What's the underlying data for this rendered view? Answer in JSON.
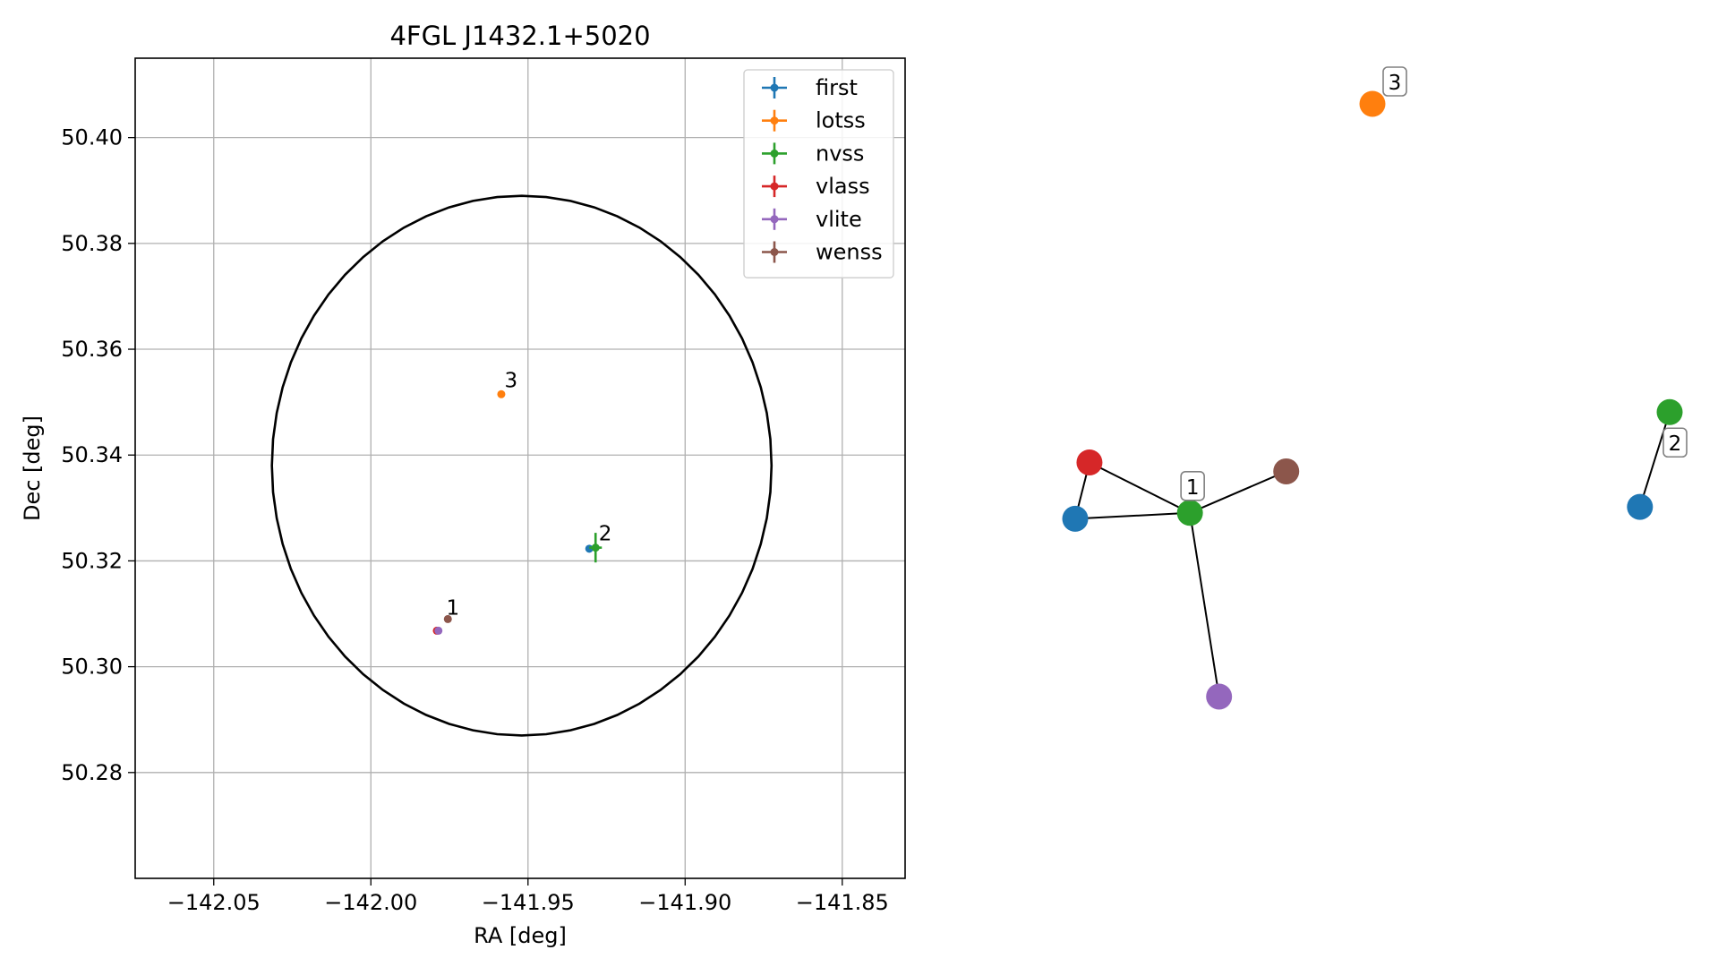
{
  "chart_data": [
    {
      "type": "scatter",
      "title": "4FGL J1432.1+5020",
      "xlabel": "RA [deg]",
      "ylabel": "Dec [deg]",
      "xlim": [
        -142.075,
        -141.83
      ],
      "ylim": [
        50.26,
        50.415
      ],
      "xticks": [
        -142.05,
        -142.0,
        -141.95,
        -141.9,
        -141.85
      ],
      "xtick_labels": [
        "−142.05",
        "−142.00",
        "−141.95",
        "−141.90",
        "−141.85"
      ],
      "yticks": [
        50.28,
        50.3,
        50.32,
        50.34,
        50.36,
        50.38,
        50.4
      ],
      "ytick_labels": [
        "50.28",
        "50.30",
        "50.32",
        "50.34",
        "50.36",
        "50.38",
        "50.40"
      ],
      "grid": true,
      "legend_position": "top-right",
      "circle": {
        "center_ra": -141.952,
        "center_dec": 50.338,
        "radius_ra": 0.0795,
        "radius_dec": 0.051
      },
      "series": [
        {
          "name": "first",
          "color": "#1f77b4",
          "points": [
            {
              "x": -141.9305,
              "y": 50.3223,
              "xerr": 0,
              "yerr": 0
            }
          ]
        },
        {
          "name": "lotss",
          "color": "#ff7f0e",
          "points": [
            {
              "x": -141.9585,
              "y": 50.3515,
              "xerr": 0,
              "yerr": 0
            }
          ]
        },
        {
          "name": "nvss",
          "color": "#2ca02c",
          "points": [
            {
              "x": -141.9285,
              "y": 50.3225,
              "xerr": 0.002,
              "yerr": 0.0028
            }
          ]
        },
        {
          "name": "vlass",
          "color": "#d62728",
          "points": [
            {
              "x": -141.979,
              "y": 50.3068,
              "xerr": 0,
              "yerr": 0
            }
          ]
        },
        {
          "name": "vlite",
          "color": "#9467bd",
          "points": [
            {
              "x": -141.9785,
              "y": 50.3068,
              "xerr": 0,
              "yerr": 0
            }
          ]
        },
        {
          "name": "wenss",
          "color": "#8c564b",
          "points": [
            {
              "x": -141.9755,
              "y": 50.309,
              "xerr": 0,
              "yerr": 0
            }
          ]
        }
      ],
      "annotations": [
        {
          "text": "1",
          "x": -141.976,
          "y": 50.3095
        },
        {
          "text": "2",
          "x": -141.9275,
          "y": 50.3235
        },
        {
          "text": "3",
          "x": -141.9575,
          "y": 50.3525
        }
      ]
    },
    {
      "type": "network",
      "nodes": [
        {
          "id": "a",
          "color": "#1f77b4",
          "pos": [
            0.0,
            0.3
          ]
        },
        {
          "id": "b",
          "color": "#d62728",
          "pos": [
            0.024,
            0.395
          ]
        },
        {
          "id": "c",
          "color": "#2ca02c",
          "pos": [
            0.193,
            0.31
          ]
        },
        {
          "id": "d",
          "color": "#8c564b",
          "pos": [
            0.355,
            0.38
          ]
        },
        {
          "id": "e",
          "color": "#9467bd",
          "pos": [
            0.242,
            0.0
          ]
        },
        {
          "id": "f",
          "color": "#ff7f0e",
          "pos": [
            0.5,
            1.0
          ]
        },
        {
          "id": "g",
          "color": "#1f77b4",
          "pos": [
            0.95,
            0.32
          ]
        },
        {
          "id": "h",
          "color": "#2ca02c",
          "pos": [
            1.0,
            0.48
          ]
        }
      ],
      "edges": [
        [
          "a",
          "b"
        ],
        [
          "a",
          "c"
        ],
        [
          "b",
          "c"
        ],
        [
          "c",
          "d"
        ],
        [
          "c",
          "e"
        ],
        [
          "g",
          "h"
        ]
      ],
      "labels": [
        {
          "text": "1",
          "node": "c"
        },
        {
          "text": "2",
          "node": "h"
        },
        {
          "text": "3",
          "node": "f"
        }
      ]
    }
  ]
}
